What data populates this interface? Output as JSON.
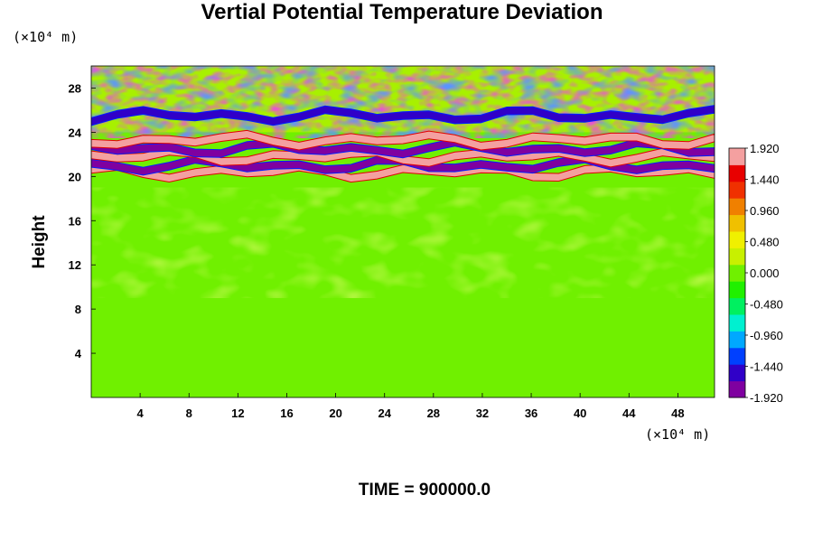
{
  "chart_data": {
    "type": "heatmap",
    "title": "Vertial Potential Temperature Deviation",
    "ylabel": "Height",
    "y_unit_label": "(×10⁴ m)",
    "x_unit_label": "(×10⁴ m)",
    "xlim": [
      0,
      51
    ],
    "ylim": [
      0,
      30
    ],
    "x_ticks": [
      4,
      8,
      12,
      16,
      20,
      24,
      28,
      32,
      36,
      40,
      44,
      48
    ],
    "y_ticks": [
      4,
      8,
      12,
      16,
      20,
      24,
      28
    ],
    "colorbar": {
      "min": -1.92,
      "max": 1.92,
      "tick_labels": [
        "1.920",
        "1.440",
        "0.960",
        "0.480",
        "0.000",
        "-0.480",
        "-0.960",
        "-1.440",
        "-1.920"
      ],
      "tick_values": [
        1.92,
        1.44,
        0.96,
        0.48,
        0.0,
        -0.48,
        -0.96,
        -1.44,
        -1.92
      ],
      "palette": [
        "#7f00a0",
        "#3000c8",
        "#0040ff",
        "#00a8ff",
        "#00f0d0",
        "#00f060",
        "#20f000",
        "#70f000",
        "#c8f000",
        "#f0f000",
        "#f0c000",
        "#f08000",
        "#f03000",
        "#e80000",
        "#f4a0a0"
      ]
    },
    "field_features": {
      "background_value": 0.05,
      "bands": [
        {
          "y": 20.4,
          "value": 1.9,
          "note": ""
        },
        {
          "y": 21.0,
          "value": -1.9,
          "note": ""
        },
        {
          "y": 21.8,
          "value": 1.9,
          "note": ""
        },
        {
          "y": 22.5,
          "value": -1.9,
          "note": ""
        },
        {
          "y": 23.3,
          "value": 1.9,
          "note": ""
        },
        {
          "y": 25.5,
          "value": -1.6,
          "note": ""
        }
      ]
    }
  },
  "footer": {
    "time_label": "TIME = 900000.0"
  }
}
